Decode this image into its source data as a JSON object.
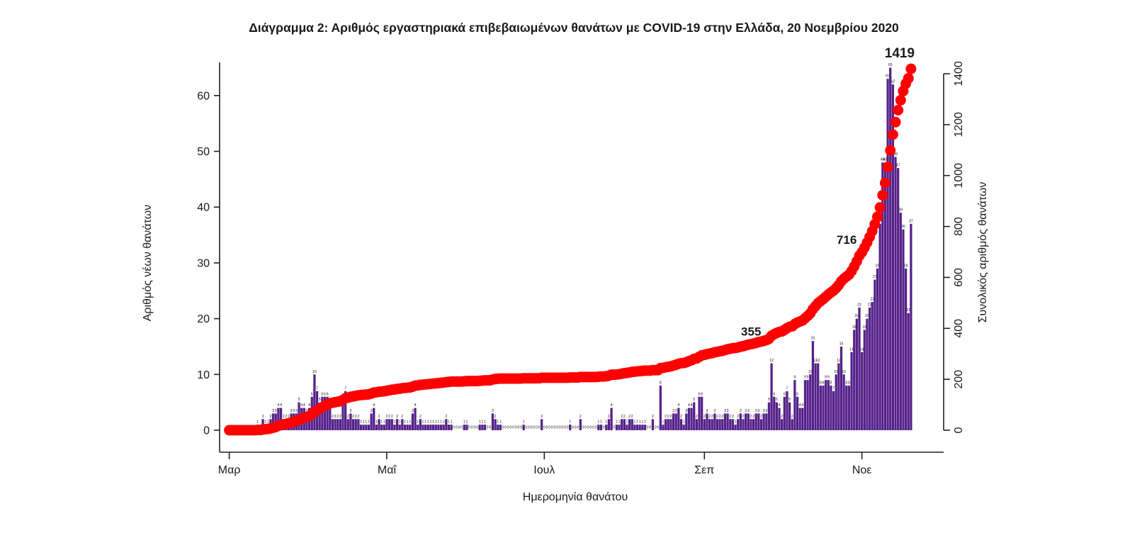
{
  "chart_data": {
    "type": "bar",
    "overlay_type": "line",
    "title": "Διάγραμμα 2: Αριθμός εργαστηριακά επιβεβαιωμένων θανάτων με COVID-19 στην Ελλάδα, 20 Νοεμβρίου 2020",
    "x_label": "Ημερομηνία θανάτου",
    "y_left_label": "Αριθμός νέων θανάτων",
    "y_right_label": "Συνολικός αριθμός θανάτων",
    "x_start_date": "2020-03-01",
    "x_end_date": "2020-11-20",
    "grid": false,
    "legend": "none",
    "y_left_ticks": [
      0,
      10,
      20,
      30,
      40,
      50,
      60
    ],
    "y_right_ticks": [
      0,
      200,
      400,
      600,
      800,
      1000,
      1200,
      1400
    ],
    "y_right_max": 1400,
    "x_ticks": [
      {
        "label": "Μαρ",
        "day_index": 0
      },
      {
        "label": "Μαΐ",
        "day_index": 61
      },
      {
        "label": "Ιουλ",
        "day_index": 122
      },
      {
        "label": "Σεπ",
        "day_index": 184
      },
      {
        "label": "Νοε",
        "day_index": 245
      }
    ],
    "series": [
      {
        "name": "daily_deaths",
        "axis": "left",
        "style": "bar",
        "bar_value_labels_shown": true,
        "values": [
          0,
          0,
          0,
          0,
          0,
          0,
          0,
          0,
          0,
          0,
          0,
          1,
          0,
          2,
          1,
          1,
          2,
          3,
          3,
          4,
          4,
          2,
          2,
          2,
          3,
          3,
          3,
          5,
          4,
          4,
          3,
          4,
          6,
          10,
          7,
          5,
          6,
          6,
          6,
          4,
          2,
          2,
          2,
          2,
          5,
          7,
          2,
          3,
          2,
          2,
          2,
          1,
          1,
          1,
          1,
          3,
          4,
          1,
          2,
          1,
          1,
          2,
          2,
          2,
          1,
          2,
          1,
          2,
          1,
          1,
          1,
          3,
          4,
          1,
          2,
          1,
          1,
          1,
          1,
          1,
          1,
          1,
          1,
          1,
          2,
          1,
          1,
          0,
          0,
          0,
          0,
          1,
          1,
          0,
          0,
          0,
          0,
          1,
          1,
          1,
          0,
          0,
          3,
          2,
          1,
          1,
          0,
          0,
          0,
          0,
          0,
          0,
          0,
          0,
          1,
          0,
          0,
          0,
          0,
          0,
          0,
          2,
          0,
          0,
          0,
          0,
          0,
          0,
          0,
          0,
          0,
          0,
          1,
          0,
          0,
          0,
          2,
          0,
          0,
          0,
          0,
          0,
          0,
          1,
          1,
          0,
          1,
          2,
          4,
          0,
          1,
          1,
          2,
          2,
          1,
          2,
          2,
          1,
          1,
          1,
          1,
          1,
          0,
          0,
          2,
          0,
          0,
          8,
          1,
          2,
          2,
          2,
          3,
          3,
          4,
          2,
          1,
          3,
          4,
          4,
          5,
          2,
          6,
          6,
          2,
          3,
          2,
          2,
          3,
          2,
          2,
          2,
          3,
          3,
          2,
          2,
          1,
          2,
          3,
          2,
          3,
          3,
          2,
          2,
          3,
          3,
          2,
          3,
          3,
          5,
          12,
          6,
          5,
          4,
          2,
          6,
          7,
          5,
          2,
          9,
          6,
          4,
          4,
          9,
          9,
          10,
          16,
          12,
          12,
          8,
          8,
          9,
          9,
          8,
          7,
          10,
          12,
          15,
          10,
          8,
          8,
          14,
          18,
          20,
          22,
          14,
          18,
          20,
          22,
          23,
          27,
          29,
          37,
          48,
          48,
          63,
          65,
          62,
          49,
          47,
          39,
          36,
          29,
          21,
          37
        ]
      },
      {
        "name": "cumulative_deaths",
        "axis": "right",
        "style": "points-line",
        "derived_from": "running sum of daily_deaths",
        "final_value": 1419
      }
    ],
    "annotations": [
      {
        "text": "355",
        "value": 355
      },
      {
        "text": "716",
        "value": 716
      },
      {
        "text": "1419",
        "value": 1419
      }
    ],
    "colors": {
      "bars": "#55218A",
      "cumulative": "#FF0000",
      "annotation_text": "#F40000",
      "axis": "#222222",
      "text": "#1A1A1A"
    }
  }
}
